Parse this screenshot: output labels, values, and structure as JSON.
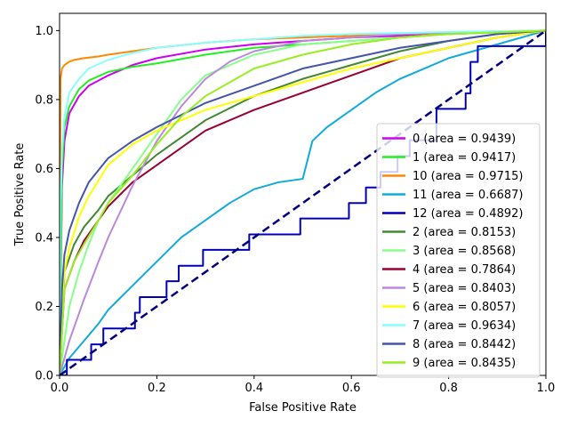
{
  "chart_data": {
    "type": "line",
    "title": "",
    "xlabel": "False Positive Rate",
    "ylabel": "True Positive Rate",
    "xlim": [
      0,
      1
    ],
    "ylim": [
      0,
      1.05
    ],
    "xticks": [
      "0.0",
      "0.2",
      "0.4",
      "0.6",
      "0.8",
      "1.0"
    ],
    "yticks": [
      "0.0",
      "0.2",
      "0.4",
      "0.6",
      "0.8",
      "1.0"
    ],
    "grid": false,
    "legend_position": "lower-right",
    "diagonal": {
      "x": [
        0,
        1
      ],
      "y": [
        0,
        1
      ],
      "color": "#000080",
      "style": "dashed"
    },
    "series": [
      {
        "name": "0 (area = 0.9439)",
        "color": "#cc00ee",
        "x": [
          0,
          0.005,
          0.01,
          0.02,
          0.04,
          0.06,
          0.1,
          0.15,
          0.2,
          0.3,
          0.4,
          0.5,
          0.6,
          0.7,
          0.8,
          0.9,
          1.0
        ],
        "y": [
          0,
          0.55,
          0.68,
          0.76,
          0.81,
          0.84,
          0.87,
          0.9,
          0.92,
          0.945,
          0.96,
          0.97,
          0.98,
          0.985,
          0.99,
          0.995,
          1.0
        ]
      },
      {
        "name": "1 (area = 0.9417)",
        "color": "#22ee22",
        "x": [
          0,
          0.005,
          0.01,
          0.02,
          0.04,
          0.06,
          0.1,
          0.15,
          0.2,
          0.3,
          0.4,
          0.5,
          0.6,
          0.7,
          0.8,
          0.9,
          1.0
        ],
        "y": [
          0,
          0.6,
          0.72,
          0.78,
          0.83,
          0.855,
          0.88,
          0.895,
          0.905,
          0.93,
          0.95,
          0.96,
          0.97,
          0.98,
          0.99,
          0.995,
          1.0
        ]
      },
      {
        "name": "10 (area = 0.9715)",
        "color": "#ff8800",
        "x": [
          0,
          0.002,
          0.005,
          0.01,
          0.02,
          0.03,
          0.05,
          0.08,
          0.1,
          0.15,
          0.2,
          0.3,
          0.4,
          0.5,
          0.6,
          0.7,
          0.8,
          0.9,
          1.0
        ],
        "y": [
          0,
          0.86,
          0.89,
          0.9,
          0.91,
          0.915,
          0.92,
          0.925,
          0.93,
          0.94,
          0.95,
          0.965,
          0.975,
          0.98,
          0.985,
          0.99,
          0.993,
          0.997,
          1.0
        ]
      },
      {
        "name": "11 (area = 0.6687)",
        "color": "#11aadd",
        "x": [
          0,
          0.02,
          0.05,
          0.08,
          0.1,
          0.15,
          0.2,
          0.25,
          0.3,
          0.35,
          0.4,
          0.45,
          0.5,
          0.52,
          0.55,
          0.6,
          0.65,
          0.7,
          0.75,
          0.8,
          0.85,
          0.9,
          0.95,
          1.0
        ],
        "y": [
          0,
          0.05,
          0.1,
          0.15,
          0.19,
          0.26,
          0.33,
          0.4,
          0.45,
          0.5,
          0.54,
          0.56,
          0.57,
          0.68,
          0.72,
          0.77,
          0.82,
          0.86,
          0.89,
          0.92,
          0.94,
          0.96,
          0.98,
          1.0
        ]
      },
      {
        "name": "12 (area = 0.4892)",
        "color": "#0000bb",
        "step": true,
        "x": [
          0,
          0.015,
          0.065,
          0.09,
          0.155,
          0.165,
          0.18,
          0.22,
          0.245,
          0.295,
          0.39,
          0.495,
          0.595,
          0.63,
          0.66,
          0.695,
          0.72,
          0.775,
          0.835,
          0.845,
          0.86,
          0.92,
          1.0
        ],
        "y": [
          0,
          0.045,
          0.09,
          0.136,
          0.182,
          0.227,
          0.227,
          0.273,
          0.318,
          0.364,
          0.409,
          0.455,
          0.5,
          0.545,
          0.59,
          0.636,
          0.682,
          0.773,
          0.818,
          0.909,
          0.955,
          0.955,
          1.0
        ]
      },
      {
        "name": "2 (area = 0.8153)",
        "color": "#448833",
        "x": [
          0,
          0.01,
          0.03,
          0.05,
          0.08,
          0.1,
          0.15,
          0.2,
          0.3,
          0.4,
          0.5,
          0.6,
          0.7,
          0.8,
          0.9,
          1.0
        ],
        "y": [
          0,
          0.3,
          0.38,
          0.43,
          0.48,
          0.52,
          0.58,
          0.64,
          0.74,
          0.81,
          0.86,
          0.9,
          0.94,
          0.97,
          0.99,
          1.0
        ]
      },
      {
        "name": "3 (area = 0.8568)",
        "color": "#88ff88",
        "x": [
          0,
          0.02,
          0.04,
          0.06,
          0.08,
          0.1,
          0.15,
          0.2,
          0.25,
          0.3,
          0.35,
          0.4,
          0.5,
          0.6,
          0.7,
          0.8,
          0.9,
          1.0
        ],
        "y": [
          0,
          0.2,
          0.3,
          0.38,
          0.45,
          0.5,
          0.6,
          0.7,
          0.8,
          0.87,
          0.9,
          0.93,
          0.96,
          0.97,
          0.98,
          0.99,
          0.995,
          1.0
        ]
      },
      {
        "name": "4 (area = 0.7864)",
        "color": "#990033",
        "x": [
          0,
          0.01,
          0.03,
          0.05,
          0.08,
          0.1,
          0.15,
          0.2,
          0.3,
          0.4,
          0.5,
          0.6,
          0.7,
          0.8,
          0.9,
          1.0
        ],
        "y": [
          0,
          0.25,
          0.33,
          0.39,
          0.45,
          0.49,
          0.56,
          0.61,
          0.71,
          0.77,
          0.82,
          0.87,
          0.92,
          0.95,
          0.98,
          1.0
        ]
      },
      {
        "name": "5 (area = 0.8403)",
        "color": "#bb88dd",
        "x": [
          0,
          0.02,
          0.05,
          0.08,
          0.1,
          0.15,
          0.2,
          0.25,
          0.3,
          0.35,
          0.4,
          0.5,
          0.6,
          0.7,
          0.8,
          0.9,
          1.0
        ],
        "y": [
          0,
          0.1,
          0.22,
          0.33,
          0.4,
          0.55,
          0.68,
          0.78,
          0.86,
          0.91,
          0.94,
          0.97,
          0.98,
          0.99,
          0.995,
          0.998,
          1.0
        ]
      },
      {
        "name": "6 (area = 0.8057)",
        "color": "#ffff00",
        "x": [
          0,
          0.005,
          0.01,
          0.02,
          0.04,
          0.06,
          0.1,
          0.15,
          0.2,
          0.3,
          0.4,
          0.5,
          0.6,
          0.7,
          0.8,
          0.9,
          1.0
        ],
        "y": [
          0,
          0.2,
          0.3,
          0.37,
          0.46,
          0.52,
          0.61,
          0.67,
          0.71,
          0.77,
          0.81,
          0.85,
          0.89,
          0.92,
          0.95,
          0.98,
          1.0
        ]
      },
      {
        "name": "7 (area = 0.9634)",
        "color": "#88ffff",
        "x": [
          0,
          0.002,
          0.005,
          0.01,
          0.02,
          0.04,
          0.06,
          0.1,
          0.15,
          0.2,
          0.3,
          0.4,
          0.5,
          0.6,
          0.7,
          0.8,
          0.9,
          1.0
        ],
        "y": [
          0,
          0.5,
          0.65,
          0.75,
          0.82,
          0.86,
          0.89,
          0.915,
          0.935,
          0.95,
          0.965,
          0.975,
          0.985,
          0.99,
          0.993,
          0.996,
          0.998,
          1.0
        ]
      },
      {
        "name": "8 (area = 0.8442)",
        "color": "#4455aa",
        "x": [
          0,
          0.005,
          0.01,
          0.02,
          0.04,
          0.06,
          0.1,
          0.15,
          0.2,
          0.3,
          0.4,
          0.5,
          0.6,
          0.7,
          0.8,
          0.9,
          1.0
        ],
        "y": [
          0,
          0.25,
          0.35,
          0.42,
          0.5,
          0.56,
          0.63,
          0.68,
          0.72,
          0.79,
          0.84,
          0.89,
          0.92,
          0.95,
          0.97,
          0.99,
          1.0
        ]
      },
      {
        "name": "9 (area = 0.8435)",
        "color": "#99ee22",
        "x": [
          0,
          0.01,
          0.03,
          0.05,
          0.08,
          0.1,
          0.15,
          0.2,
          0.25,
          0.3,
          0.35,
          0.4,
          0.5,
          0.6,
          0.7,
          0.8,
          0.9,
          1.0
        ],
        "y": [
          0,
          0.25,
          0.33,
          0.38,
          0.45,
          0.5,
          0.58,
          0.67,
          0.75,
          0.81,
          0.85,
          0.89,
          0.93,
          0.96,
          0.98,
          0.99,
          0.995,
          1.0
        ]
      }
    ]
  }
}
